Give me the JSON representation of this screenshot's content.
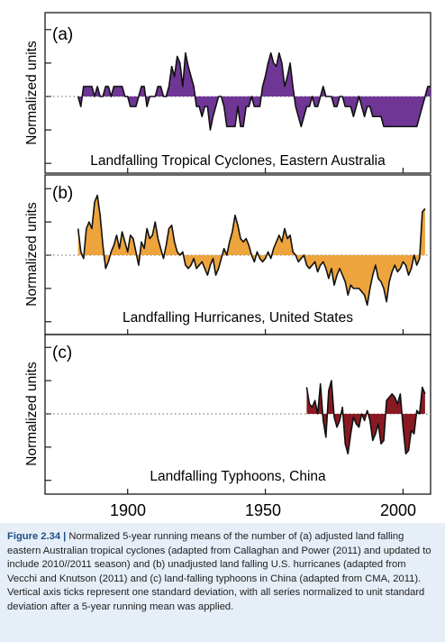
{
  "colors": {
    "panel_a": "#6f3696",
    "panel_b": "#eda43c",
    "panel_c": "#8a1a22",
    "line": "#111111",
    "zero_line": "#666666",
    "caption_bg": "#e6eef7",
    "caption_label": "#1d4e89"
  },
  "x_ticks": [
    "1900",
    "1950",
    "2000"
  ],
  "caption": {
    "label": "Figure 2.34 |",
    "text": "Normalized 5-year running means of the number of (a) adjusted land falling eastern Australian tropical cyclones (adapted from Callaghan and Power (2011) and updated to include 2010//2011 season) and (b) unadjusted land falling U.S. hurricanes (adapted from Vecchi and Knutson (2011) and (c) land-falling typhoons in China (adapted from CMA, 2011). Vertical axis ticks represent one standard deviation, with all series normalized to unit standard deviation after a 5-year running mean was applied."
  },
  "chart_data": [
    {
      "type": "area",
      "panel_label": "(a)",
      "title": "Landfalling Tropical Cyclones, Eastern Australia",
      "ylabel": "Normalized units",
      "xlim": [
        1870,
        2010
      ],
      "ylim": [
        -2.4,
        2.4
      ],
      "x": [
        1882,
        1883,
        1884,
        1885,
        1886,
        1887,
        1888,
        1889,
        1890,
        1891,
        1892,
        1893,
        1894,
        1895,
        1896,
        1897,
        1898,
        1899,
        1900,
        1901,
        1902,
        1903,
        1904,
        1905,
        1906,
        1907,
        1908,
        1909,
        1910,
        1911,
        1912,
        1913,
        1914,
        1915,
        1916,
        1917,
        1918,
        1919,
        1920,
        1921,
        1922,
        1923,
        1924,
        1925,
        1926,
        1927,
        1928,
        1929,
        1930,
        1931,
        1932,
        1933,
        1934,
        1935,
        1936,
        1937,
        1938,
        1939,
        1940,
        1941,
        1942,
        1943,
        1944,
        1945,
        1946,
        1947,
        1948,
        1949,
        1950,
        1951,
        1952,
        1953,
        1954,
        1955,
        1956,
        1957,
        1958,
        1959,
        1960,
        1961,
        1962,
        1963,
        1964,
        1965,
        1966,
        1967,
        1968,
        1969,
        1970,
        1971,
        1972,
        1973,
        1974,
        1975,
        1976,
        1977,
        1978,
        1979,
        1980,
        1981,
        1982,
        1983,
        1984,
        1985,
        1986,
        1987,
        1988,
        1989,
        1990,
        1991,
        1992,
        1993,
        1994,
        1995,
        1996,
        1997,
        1998,
        1999,
        2000,
        2001,
        2002,
        2003,
        2004,
        2005,
        2006,
        2007,
        2008,
        2009,
        2010
      ],
      "y": [
        0.0,
        -0.3,
        0.3,
        0.3,
        0.3,
        0.3,
        0.0,
        0.3,
        0.0,
        0.0,
        0.3,
        0.3,
        0.0,
        0.3,
        0.3,
        0.3,
        0.3,
        0.0,
        0.0,
        -0.3,
        -0.3,
        -0.3,
        0.0,
        0.3,
        0.3,
        -0.3,
        0.0,
        0.0,
        0.0,
        0.3,
        0.3,
        0.0,
        0.0,
        0.3,
        0.9,
        0.6,
        1.2,
        1.0,
        0.3,
        1.3,
        0.9,
        0.6,
        0.3,
        -0.3,
        -0.3,
        -0.6,
        -0.3,
        -0.3,
        -1.0,
        -0.6,
        -0.3,
        0.0,
        0.0,
        -0.3,
        -0.9,
        -0.9,
        -0.9,
        -0.9,
        -0.3,
        -0.9,
        -0.9,
        -0.3,
        -0.3,
        0.0,
        -0.3,
        -0.3,
        -0.3,
        0.3,
        0.6,
        1.0,
        1.3,
        1.0,
        0.9,
        1.3,
        1.0,
        0.3,
        0.6,
        1.0,
        0.3,
        -0.3,
        -0.6,
        -0.9,
        -0.6,
        -0.3,
        -0.3,
        0.0,
        -0.3,
        -0.3,
        0.0,
        0.3,
        0.0,
        0.0,
        0.0,
        -0.3,
        -0.3,
        0.0,
        0.0,
        -0.3,
        -0.3,
        -0.3,
        -0.6,
        -0.3,
        0.0,
        -0.3,
        -0.6,
        -0.3,
        -0.3,
        -0.6,
        -0.6,
        -0.6,
        -0.6,
        -0.9,
        -0.9,
        -0.9,
        -0.9,
        -0.9,
        -0.9,
        -0.9,
        -0.9,
        -0.9,
        -0.9,
        -0.9,
        -0.9,
        -0.9,
        -0.6,
        -0.3,
        0.0,
        0.3,
        0.3
      ]
    },
    {
      "type": "area",
      "panel_label": "(b)",
      "title": "Landfalling Hurricanes, United States",
      "ylabel": "Normalized units",
      "xlim": [
        1870,
        2010
      ],
      "ylim": [
        -2.4,
        2.4
      ],
      "x": [
        1882,
        1883,
        1884,
        1885,
        1886,
        1887,
        1888,
        1889,
        1890,
        1891,
        1892,
        1893,
        1894,
        1895,
        1896,
        1897,
        1898,
        1899,
        1900,
        1901,
        1902,
        1903,
        1904,
        1905,
        1906,
        1907,
        1908,
        1909,
        1910,
        1911,
        1912,
        1913,
        1914,
        1915,
        1916,
        1917,
        1918,
        1919,
        1920,
        1921,
        1922,
        1923,
        1924,
        1925,
        1926,
        1927,
        1928,
        1929,
        1930,
        1931,
        1932,
        1933,
        1934,
        1935,
        1936,
        1937,
        1938,
        1939,
        1940,
        1941,
        1942,
        1943,
        1944,
        1945,
        1946,
        1947,
        1948,
        1949,
        1950,
        1951,
        1952,
        1953,
        1954,
        1955,
        1956,
        1957,
        1958,
        1959,
        1960,
        1961,
        1962,
        1963,
        1964,
        1965,
        1966,
        1967,
        1968,
        1969,
        1970,
        1971,
        1972,
        1973,
        1974,
        1975,
        1976,
        1977,
        1978,
        1979,
        1980,
        1981,
        1982,
        1983,
        1984,
        1985,
        1986,
        1987,
        1988,
        1989,
        1990,
        1991,
        1992,
        1993,
        1994,
        1995,
        1996,
        1997,
        1998,
        1999,
        2000,
        2001,
        2002,
        2003,
        2004,
        2005,
        2006,
        2007,
        2008
      ],
      "y": [
        0.8,
        0.1,
        -0.1,
        0.8,
        1.0,
        0.8,
        1.6,
        1.8,
        1.2,
        0.3,
        -0.4,
        -0.2,
        0.1,
        0.3,
        0.6,
        0.2,
        0.7,
        0.4,
        0.1,
        0.6,
        0.5,
        0.1,
        -0.3,
        0.4,
        0.2,
        0.8,
        0.5,
        0.6,
        1.0,
        0.5,
        0.2,
        -0.1,
        0.3,
        0.8,
        0.9,
        0.4,
        0.1,
        0.0,
        0.1,
        -0.3,
        -0.4,
        -0.3,
        -0.1,
        -0.4,
        -0.3,
        -0.2,
        -0.4,
        -0.6,
        -0.3,
        -0.1,
        -0.6,
        -0.4,
        -0.1,
        0.2,
        0.0,
        0.4,
        0.7,
        1.2,
        0.9,
        0.5,
        0.4,
        0.5,
        0.3,
        0.0,
        -0.2,
        0.1,
        -0.1,
        -0.2,
        -0.1,
        0.1,
        -0.1,
        0.2,
        0.4,
        0.6,
        0.4,
        0.8,
        0.5,
        0.6,
        0.1,
        0.0,
        -0.2,
        -0.1,
        0.0,
        -0.3,
        -0.4,
        -0.3,
        -0.2,
        -0.5,
        -0.3,
        -0.2,
        -0.4,
        -0.7,
        -0.4,
        -0.9,
        -0.6,
        -0.4,
        -0.6,
        -0.8,
        -1.2,
        -0.9,
        -1.0,
        -1.0,
        -1.0,
        -1.1,
        -1.2,
        -1.5,
        -1.0,
        -0.6,
        -0.3,
        -0.7,
        -0.8,
        -1.0,
        -1.4,
        -0.8,
        -0.5,
        -0.3,
        -0.5,
        -0.4,
        -0.2,
        -0.3,
        -0.6,
        -0.4,
        0.0,
        -0.3,
        -0.1,
        1.3,
        1.4
      ]
    },
    {
      "type": "area",
      "panel_label": "(c)",
      "title": "Landfalling Typhoons, China",
      "ylabel": "Normalized units",
      "xlim": [
        1870,
        2010
      ],
      "ylim": [
        -2.4,
        2.4
      ],
      "x": [
        1965,
        1966,
        1967,
        1968,
        1969,
        1970,
        1971,
        1972,
        1973,
        1974,
        1975,
        1976,
        1977,
        1978,
        1979,
        1980,
        1981,
        1982,
        1983,
        1984,
        1985,
        1986,
        1987,
        1988,
        1989,
        1990,
        1991,
        1992,
        1993,
        1994,
        1995,
        1996,
        1997,
        1998,
        1999,
        2000,
        2001,
        2002,
        2003,
        2004,
        2005,
        2006,
        2007,
        2008
      ],
      "y": [
        0.8,
        0.3,
        0.2,
        0.4,
        0.0,
        0.9,
        -0.2,
        -0.7,
        0.7,
        1.0,
        -0.1,
        -0.4,
        -0.2,
        0.2,
        -0.9,
        -1.2,
        -0.6,
        -0.1,
        -0.3,
        -0.4,
        0.0,
        -0.2,
        0.1,
        -0.2,
        -0.8,
        -0.6,
        -0.3,
        -0.9,
        -0.8,
        0.4,
        0.5,
        0.6,
        0.5,
        0.3,
        0.6,
        -0.4,
        -1.2,
        -1.1,
        -0.5,
        -0.6,
        0.1,
        0.0,
        0.8,
        0.6
      ]
    }
  ]
}
